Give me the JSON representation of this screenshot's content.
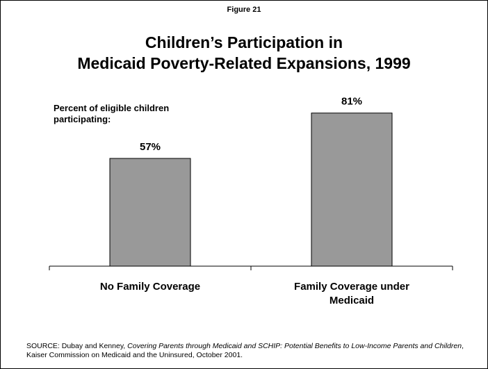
{
  "figure_label": "Figure 21",
  "title_line1": "Children’s Participation in",
  "title_line2": "Medicaid Poverty-Related Expansions, 1999",
  "source": {
    "prefix": "SOURCE: Dubay and Kenney, ",
    "title_italic": "Covering Parents through Medicaid and SCHIP: Potential Benefits to Low-Income Parents and Children",
    "suffix": ", Kaiser Commission on Medicaid and the Uninsured, October 2001."
  },
  "colors": {
    "bar": "#999999",
    "bar_stroke": "#000000",
    "axis": "#000000"
  },
  "chart_data": {
    "type": "bar",
    "title": "Children’s Participation in Medicaid Poverty-Related Expansions, 1999",
    "ylabel_line1": "Percent of eligible children",
    "ylabel_line2": "participating:",
    "xlabel": "",
    "categories": [
      "No Family Coverage",
      "Family Coverage under Medicaid"
    ],
    "category_lines": [
      [
        "No Family Coverage"
      ],
      [
        "Family Coverage under",
        "Medicaid"
      ]
    ],
    "values": [
      57,
      81
    ],
    "value_labels": [
      "57%",
      "81%"
    ],
    "ylim": [
      0,
      100
    ],
    "grid": false,
    "legend": "none"
  }
}
